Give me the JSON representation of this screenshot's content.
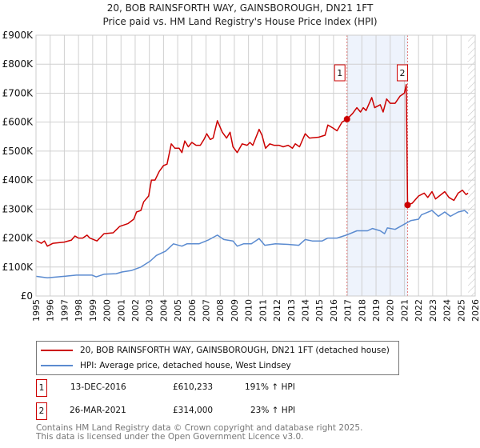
{
  "title": {
    "line1": "20, BOB RAINSFORTH WAY, GAINSBOROUGH, DN21 1FT",
    "line2": "Price paid vs. HM Land Registry's House Price Index (HPI)"
  },
  "chart_data": {
    "type": "line",
    "title": "20, BOB RAINSFORTH WAY, GAINSBOROUGH, DN21 1FT — Price paid vs. HM Land Registry's House Price Index (HPI)",
    "xlim": [
      1995,
      2026
    ],
    "ylim": [
      0,
      900000
    ],
    "grid": true,
    "x_ticks": [
      "1995",
      "1996",
      "1997",
      "1998",
      "1999",
      "2000",
      "2001",
      "2002",
      "2003",
      "2004",
      "2005",
      "2006",
      "2007",
      "2008",
      "2009",
      "2010",
      "2011",
      "2012",
      "2013",
      "2014",
      "2015",
      "2016",
      "2017",
      "2018",
      "2019",
      "2020",
      "2021",
      "2022",
      "2023",
      "2024",
      "2025",
      "2026"
    ],
    "y_ticks": [
      {
        "v": 0,
        "label": "£0"
      },
      {
        "v": 100000,
        "label": "£100K"
      },
      {
        "v": 200000,
        "label": "£200K"
      },
      {
        "v": 300000,
        "label": "£300K"
      },
      {
        "v": 400000,
        "label": "£400K"
      },
      {
        "v": 500000,
        "label": "£500K"
      },
      {
        "v": 600000,
        "label": "£600K"
      },
      {
        "v": 700000,
        "label": "£700K"
      },
      {
        "v": 800000,
        "label": "£800K"
      },
      {
        "v": 900000,
        "label": "£900K"
      }
    ],
    "shaded_range": [
      2016.95,
      2021.23
    ],
    "forecast_hatch_from": 2025.5,
    "series": [
      {
        "name": "20, BOB RAINSFORTH WAY, GAINSBOROUGH, DN21 1FT (detached house)",
        "color": "#cc0000",
        "points": [
          [
            1995,
            192000
          ],
          [
            1995.37,
            182000
          ],
          [
            1995.6,
            190000
          ],
          [
            1995.8,
            172000
          ],
          [
            1996.2,
            182000
          ],
          [
            1997,
            186000
          ],
          [
            1997.5,
            193000
          ],
          [
            1997.75,
            207000
          ],
          [
            1998,
            200000
          ],
          [
            1998.3,
            200000
          ],
          [
            1998.6,
            210000
          ],
          [
            1998.8,
            200000
          ],
          [
            1999.3,
            190000
          ],
          [
            1999.8,
            215000
          ],
          [
            2000.45,
            218000
          ],
          [
            2000.7,
            230000
          ],
          [
            2000.9,
            240000
          ],
          [
            2001.5,
            250000
          ],
          [
            2001.9,
            265000
          ],
          [
            2002.1,
            290000
          ],
          [
            2002.4,
            295000
          ],
          [
            2002.6,
            325000
          ],
          [
            2002.95,
            345000
          ],
          [
            2003.15,
            400000
          ],
          [
            2003.4,
            400000
          ],
          [
            2003.7,
            430000
          ],
          [
            2004,
            450000
          ],
          [
            2004.25,
            455000
          ],
          [
            2004.55,
            525000
          ],
          [
            2004.8,
            510000
          ],
          [
            2005.1,
            510000
          ],
          [
            2005.3,
            495000
          ],
          [
            2005.5,
            535000
          ],
          [
            2005.75,
            515000
          ],
          [
            2006,
            530000
          ],
          [
            2006.3,
            520000
          ],
          [
            2006.6,
            520000
          ],
          [
            2006.85,
            540000
          ],
          [
            2007.05,
            560000
          ],
          [
            2007.3,
            540000
          ],
          [
            2007.5,
            545000
          ],
          [
            2007.8,
            605000
          ],
          [
            2008.15,
            565000
          ],
          [
            2008.45,
            545000
          ],
          [
            2008.7,
            565000
          ],
          [
            2008.9,
            515000
          ],
          [
            2009.2,
            495000
          ],
          [
            2009.55,
            525000
          ],
          [
            2009.9,
            520000
          ],
          [
            2010.1,
            530000
          ],
          [
            2010.3,
            520000
          ],
          [
            2010.75,
            575000
          ],
          [
            2010.95,
            555000
          ],
          [
            2011.2,
            510000
          ],
          [
            2011.5,
            525000
          ],
          [
            2011.8,
            520000
          ],
          [
            2012.15,
            520000
          ],
          [
            2012.45,
            515000
          ],
          [
            2012.8,
            520000
          ],
          [
            2013.1,
            510000
          ],
          [
            2013.3,
            525000
          ],
          [
            2013.6,
            515000
          ],
          [
            2014,
            560000
          ],
          [
            2014.3,
            545000
          ],
          [
            2014.95,
            548000
          ],
          [
            2015.4,
            555000
          ],
          [
            2015.6,
            590000
          ],
          [
            2015.95,
            580000
          ],
          [
            2016.25,
            570000
          ],
          [
            2016.6,
            600000
          ],
          [
            2016.95,
            610233
          ],
          [
            2017.35,
            630000
          ],
          [
            2017.65,
            650000
          ],
          [
            2017.9,
            635000
          ],
          [
            2018.1,
            650000
          ],
          [
            2018.3,
            640000
          ],
          [
            2018.7,
            685000
          ],
          [
            2018.9,
            650000
          ],
          [
            2019.3,
            660000
          ],
          [
            2019.5,
            635000
          ],
          [
            2019.75,
            680000
          ],
          [
            2020,
            665000
          ],
          [
            2020.35,
            665000
          ],
          [
            2020.7,
            690000
          ],
          [
            2021,
            700000
          ],
          [
            2021.13,
            730000
          ],
          [
            2021.23,
            314000
          ],
          [
            2021.55,
            320000
          ],
          [
            2022,
            345000
          ],
          [
            2022.4,
            355000
          ],
          [
            2022.65,
            340000
          ],
          [
            2022.95,
            360000
          ],
          [
            2023.2,
            335000
          ],
          [
            2023.85,
            360000
          ],
          [
            2024.15,
            340000
          ],
          [
            2024.5,
            330000
          ],
          [
            2024.8,
            355000
          ],
          [
            2025.1,
            365000
          ],
          [
            2025.35,
            350000
          ],
          [
            2025.5,
            355000
          ]
        ]
      },
      {
        "name": "HPI: Average price, detached house, West Lindsey",
        "color": "#5b8bd0",
        "points": [
          [
            1995,
            68000
          ],
          [
            1995.8,
            63000
          ],
          [
            1997,
            68000
          ],
          [
            1997.85,
            72000
          ],
          [
            1998.95,
            72000
          ],
          [
            1999.25,
            66000
          ],
          [
            1999.8,
            75000
          ],
          [
            2000.65,
            77000
          ],
          [
            2001.1,
            83000
          ],
          [
            2001.75,
            88000
          ],
          [
            2002.4,
            100000
          ],
          [
            2003.05,
            120000
          ],
          [
            2003.5,
            140000
          ],
          [
            2004.15,
            155000
          ],
          [
            2004.7,
            180000
          ],
          [
            2005.3,
            172000
          ],
          [
            2005.65,
            180000
          ],
          [
            2006.5,
            180000
          ],
          [
            2007.15,
            193000
          ],
          [
            2007.8,
            210000
          ],
          [
            2008.25,
            195000
          ],
          [
            2008.9,
            190000
          ],
          [
            2009.2,
            172000
          ],
          [
            2009.65,
            180000
          ],
          [
            2010.2,
            180000
          ],
          [
            2010.75,
            198000
          ],
          [
            2011.15,
            175000
          ],
          [
            2011.9,
            180000
          ],
          [
            2012.8,
            178000
          ],
          [
            2013.55,
            175000
          ],
          [
            2014,
            195000
          ],
          [
            2014.5,
            190000
          ],
          [
            2015.2,
            190000
          ],
          [
            2015.6,
            200000
          ],
          [
            2016.25,
            200000
          ],
          [
            2016.9,
            210000
          ],
          [
            2017.65,
            225000
          ],
          [
            2018.4,
            225000
          ],
          [
            2018.75,
            233000
          ],
          [
            2019.3,
            225000
          ],
          [
            2019.6,
            215000
          ],
          [
            2019.8,
            235000
          ],
          [
            2020.35,
            230000
          ],
          [
            2021,
            248000
          ],
          [
            2021.45,
            260000
          ],
          [
            2022,
            265000
          ],
          [
            2022.2,
            280000
          ],
          [
            2022.95,
            295000
          ],
          [
            2023.4,
            275000
          ],
          [
            2023.85,
            290000
          ],
          [
            2024.25,
            275000
          ],
          [
            2024.8,
            290000
          ],
          [
            2025.25,
            295000
          ],
          [
            2025.5,
            285000
          ]
        ]
      }
    ],
    "sales": [
      {
        "id": "1",
        "year": 2016.95,
        "price": 610233
      },
      {
        "id": "2",
        "year": 2021.23,
        "price": 314000
      }
    ]
  },
  "legend": {
    "property": "20, BOB RAINSFORTH WAY, GAINSBOROUGH, DN21 1FT (detached house)",
    "hpi": "HPI: Average price, detached house, West Lindsey"
  },
  "sales_table": [
    {
      "id": "1",
      "date": "13-DEC-2016",
      "price": "£610,233",
      "hpi": "191% ↑ HPI"
    },
    {
      "id": "2",
      "date": "26-MAR-2021",
      "price": "£314,000",
      "hpi": "23% ↑ HPI"
    }
  ],
  "footer": {
    "line1": "Contains HM Land Registry data © Crown copyright and database right 2025.",
    "line2": "This data is licensed under the Open Government Licence v3.0."
  }
}
